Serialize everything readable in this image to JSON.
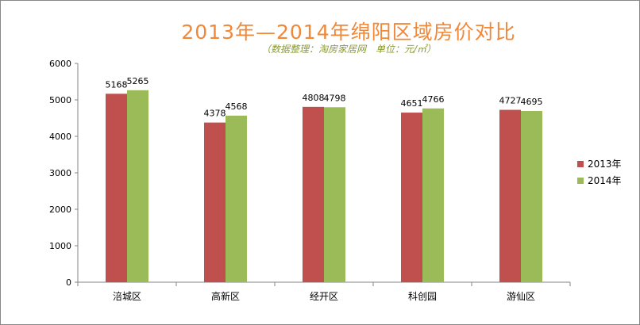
{
  "chart_data": {
    "type": "bar",
    "title": "2013年—2014年绵阳区域房价对比",
    "subtitle": "（数据整理：淘房家居网　单位：元/㎡）",
    "categories": [
      "涪城区",
      "高新区",
      "经开区",
      "科创园",
      "游仙区"
    ],
    "series": [
      {
        "name": "2013年",
        "values": [
          5168,
          4378,
          4808,
          4651,
          4727
        ],
        "color": "#c0504d"
      },
      {
        "name": "2014年",
        "values": [
          5265,
          4568,
          4798,
          4766,
          4695
        ],
        "color": "#9bbb59"
      }
    ],
    "ylim": [
      0,
      6000
    ],
    "yticks": [
      0,
      1000,
      2000,
      3000,
      4000,
      5000,
      6000
    ],
    "grid": false,
    "legend": "right",
    "data_labels": true
  }
}
